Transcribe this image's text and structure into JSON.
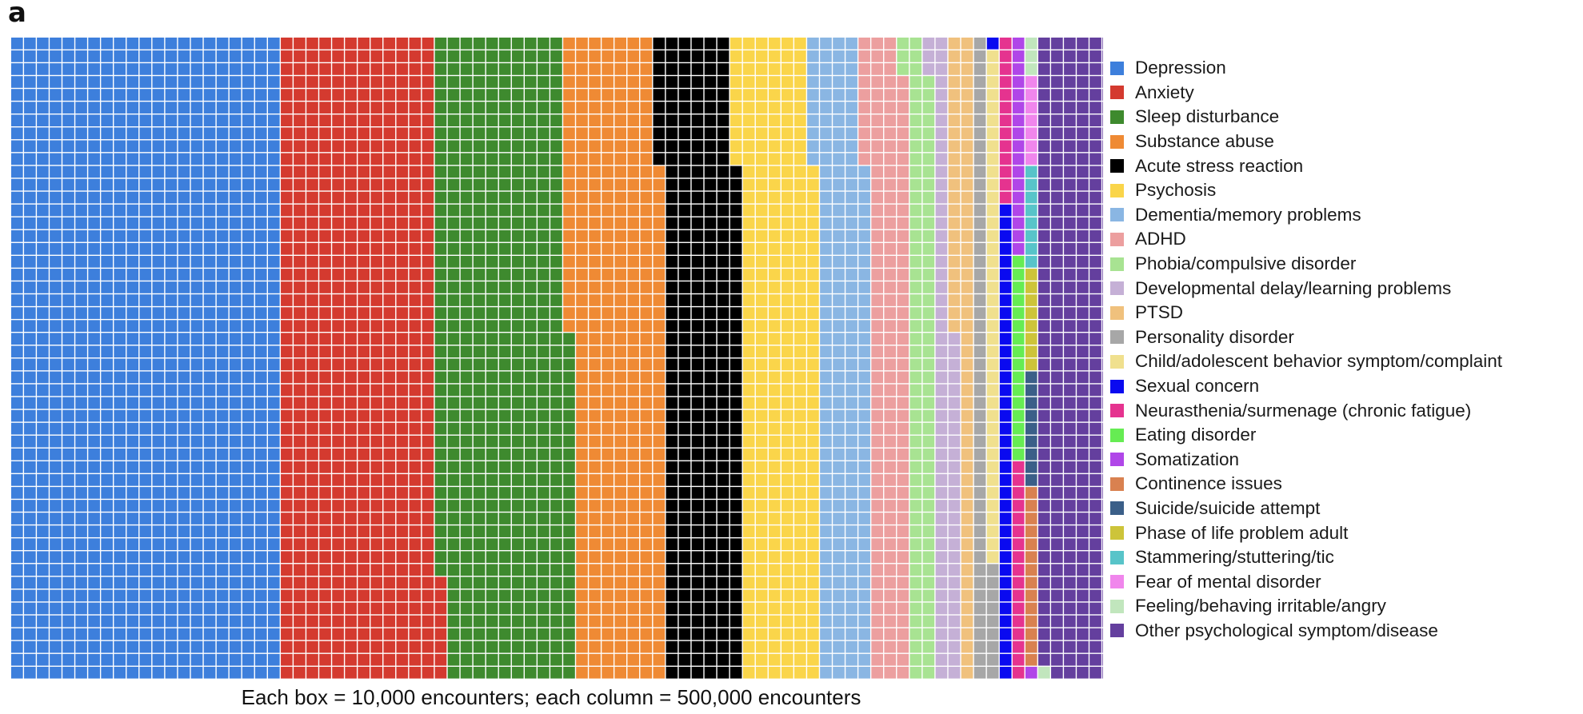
{
  "panel_label": "a",
  "caption": "Each box = 10,000 encounters; each column = 500,000 encounters",
  "chart_data": {
    "type": "waffle",
    "unit": "Each box = 10,000 encounters",
    "column_size": "each column = 500,000 encounters",
    "box_value": 10000,
    "boxes_per_column": 50,
    "categories": [
      {
        "name": "Depression",
        "color": "#3d7fdc",
        "boxes": 1050
      },
      {
        "name": "Anxiety",
        "color": "#d43a2f",
        "boxes": 608
      },
      {
        "name": "Sleep disturbance",
        "color": "#3e8a2e",
        "boxes": 519
      },
      {
        "name": "Substance abuse",
        "color": "#ef8a34",
        "boxes": 363
      },
      {
        "name": "Acute stress reaction",
        "color": "#000000",
        "boxes": 300
      },
      {
        "name": "Psychosis",
        "color": "#fad54a",
        "boxes": 300
      },
      {
        "name": "Dementia/memory problems",
        "color": "#8ab6e3",
        "boxes": 200
      },
      {
        "name": "ADHD",
        "color": "#ec9f9f",
        "boxes": 157
      },
      {
        "name": "Phobia/compulsive disorder",
        "color": "#a8e392",
        "boxes": 100
      },
      {
        "name": "Developmental delay/learning problems",
        "color": "#c5b0d6",
        "boxes": 80
      },
      {
        "name": "PTSD",
        "color": "#f0c17d",
        "boxes": 73
      },
      {
        "name": "Personality disorder",
        "color": "#a7a7a7",
        "boxes": 59
      },
      {
        "name": "Child/adolescent behavior symptom/complaint",
        "color": "#f0e08e",
        "boxes": 40
      },
      {
        "name": "Sexual concern",
        "color": "#0a0af0",
        "boxes": 38
      },
      {
        "name": "Neurasthenia/surmenage (chronic fatigue)",
        "color": "#e5338f",
        "boxes": 30
      },
      {
        "name": "Eating disorder",
        "color": "#66ec53",
        "boxes": 16
      },
      {
        "name": "Somatization",
        "color": "#b046e8",
        "boxes": 18
      },
      {
        "name": "Continence issues",
        "color": "#d98150",
        "boxes": 14
      },
      {
        "name": "Suicide/suicide attempt",
        "color": "#3b5f88",
        "boxes": 9
      },
      {
        "name": "Phase of life problem adult",
        "color": "#cdc43a",
        "boxes": 8
      },
      {
        "name": "Stammering/stuttering/tic",
        "color": "#58c4c9",
        "boxes": 8
      },
      {
        "name": "Fear of mental disorder",
        "color": "#f086ec",
        "boxes": 7
      },
      {
        "name": "Feeling/behaving irritable/angry",
        "color": "#c1e6bd",
        "boxes": 4
      },
      {
        "name": "Other psychological symptom/disease",
        "color": "#643f9e",
        "boxes": 537
      }
    ]
  }
}
